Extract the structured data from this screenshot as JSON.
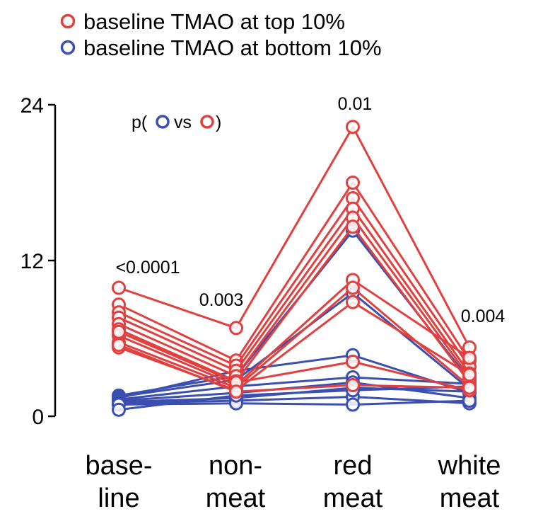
{
  "chart_data": {
    "type": "line",
    "categories": [
      {
        "line1": "base-",
        "line2": "line"
      },
      {
        "line1": "non-",
        "line2": "meat"
      },
      {
        "line1": "red",
        "line2": "meat"
      },
      {
        "line1": "white",
        "line2": "meat"
      }
    ],
    "ylim": [
      0,
      24
    ],
    "yticks": [
      "0",
      "12",
      "24"
    ],
    "legend": [
      {
        "label": "baseline TMAO at top 10%",
        "color": "#e2403f"
      },
      {
        "label": "baseline TMAO at bottom 10%",
        "color": "#3a4fb0"
      }
    ],
    "legend_position": "top-left",
    "p_label": {
      "prefix": "p(",
      "vs": "vs",
      "suffix": ")"
    },
    "p_values": [
      "<0.0001",
      "0.003",
      "0.01",
      "0.004"
    ],
    "series_groups": [
      {
        "group": "top 10%",
        "color": "#e2403f",
        "lines": [
          [
            9.9,
            6.8,
            22.3,
            5.3
          ],
          [
            8.6,
            4.3,
            18.0,
            4.3
          ],
          [
            8.0,
            3.9,
            16.8,
            3.8
          ],
          [
            7.6,
            3.5,
            16.0,
            3.3
          ],
          [
            7.1,
            3.1,
            15.3,
            3.0
          ],
          [
            6.7,
            2.7,
            14.6,
            2.6
          ],
          [
            6.2,
            2.4,
            10.5,
            4.5
          ],
          [
            5.7,
            2.2,
            9.9,
            2.3
          ],
          [
            5.3,
            2.0,
            8.8,
            3.2
          ],
          [
            6.5,
            2.6,
            4.2,
            2.0
          ],
          [
            5.5,
            1.9,
            2.4,
            2.2
          ]
        ]
      },
      {
        "group": "bottom 10%",
        "color": "#3a4fb0",
        "lines": [
          [
            1.6,
            3.1,
            14.3,
            2.8
          ],
          [
            1.5,
            2.8,
            9.5,
            2.1
          ],
          [
            1.4,
            3.5,
            4.7,
            1.8
          ],
          [
            1.3,
            2.3,
            3.0,
            2.5
          ],
          [
            1.2,
            1.8,
            2.6,
            1.4
          ],
          [
            1.1,
            1.4,
            2.2,
            1.9
          ],
          [
            1.0,
            1.2,
            1.5,
            1.0
          ],
          [
            0.9,
            1.0,
            0.9,
            1.2
          ],
          [
            0.5,
            1.6,
            2.0,
            2.3
          ]
        ]
      }
    ]
  }
}
